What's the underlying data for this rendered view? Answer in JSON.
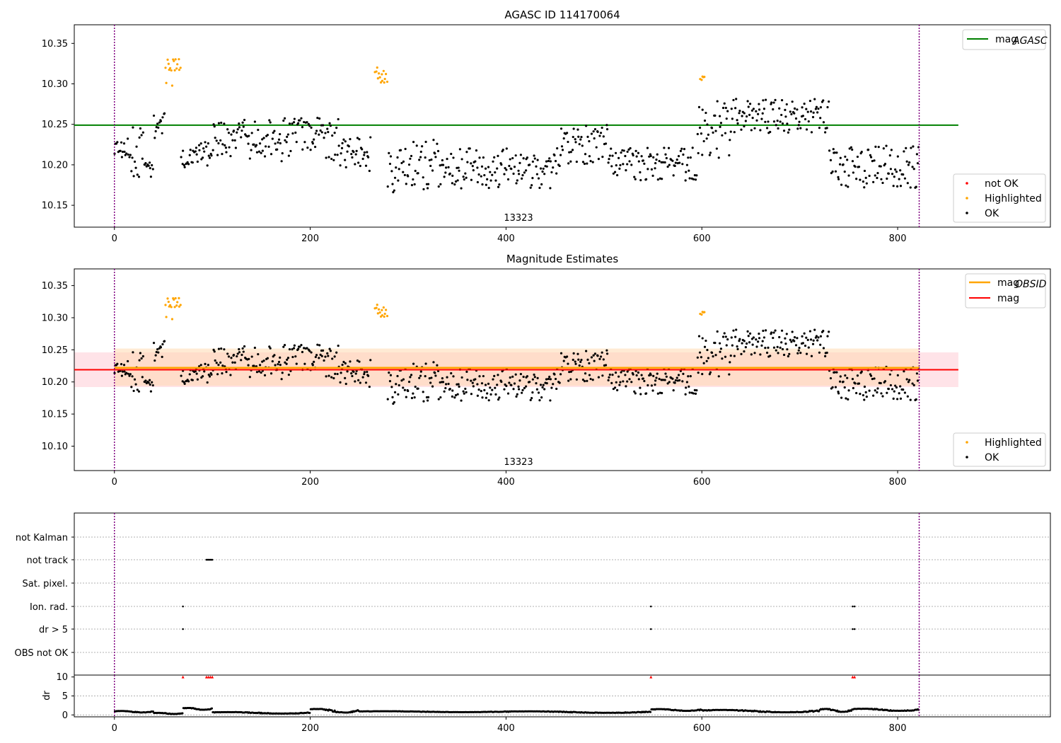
{
  "colors": {
    "ok": "#000000",
    "not_ok": "#ff0000",
    "highlighted": "#ffa500",
    "mag_agasc_line": "#008000",
    "mag_obsid_line": "#ffa500",
    "mag_line": "#ff0000",
    "band_mag": "#ffc0cb",
    "band_obsid": "#ffd8b0",
    "obs_boundary": "#800080",
    "grid": "#b0b0b0"
  },
  "chart_data": [
    {
      "type": "scatter",
      "title": "AGASC ID 114170064",
      "xlabel": "",
      "ylabel": "",
      "xlim": [
        -41,
        956
      ],
      "ylim": [
        10.123,
        10.373
      ],
      "xticks": [
        0,
        200,
        400,
        600,
        800
      ],
      "yticks": [
        10.15,
        10.2,
        10.25,
        10.3,
        10.35
      ],
      "obs_boundaries": [
        0,
        822
      ],
      "obs_label": "13323",
      "obs_label_x": 411,
      "lines": [
        {
          "name": "mag_AGASC",
          "y": 10.249,
          "x_range": [
            -41,
            862
          ],
          "color": "green"
        }
      ],
      "legend_lines": {
        "placement": "top-right",
        "entries": [
          "mag",
          "AGASC"
        ]
      },
      "legend_points": {
        "placement": "bottom-right",
        "entries": [
          "not OK",
          "Highlighted",
          "OK"
        ]
      },
      "series": [
        {
          "name": "not OK",
          "points": []
        },
        {
          "name": "Highlighted",
          "segments": [
            {
              "x": [
                52,
                68
              ],
              "y": [
                10.29,
                10.342
              ]
            },
            {
              "x": [
                266,
                279
              ],
              "y": [
                10.293,
                10.327
              ]
            },
            {
              "x": [
                598,
                603
              ],
              "y": [
                10.303,
                10.311
              ]
            }
          ]
        },
        {
          "name": "OK",
          "segments": [
            {
              "x": [
                0,
                14
              ],
              "y": [
                10.2,
                10.24
              ]
            },
            {
              "x": [
                14,
                30
              ],
              "y": [
                10.17,
                10.26
              ]
            },
            {
              "x": [
                30,
                40
              ],
              "y": [
                10.18,
                10.215
              ]
            },
            {
              "x": [
                40,
                52
              ],
              "y": [
                10.22,
                10.272
              ]
            },
            {
              "x": [
                68,
                100
              ],
              "y": [
                10.19,
                10.235
              ]
            },
            {
              "x": [
                100,
                160
              ],
              "y": [
                10.195,
                10.268
              ]
            },
            {
              "x": [
                160,
                230
              ],
              "y": [
                10.19,
                10.27
              ]
            },
            {
              "x": [
                230,
                262
              ],
              "y": [
                10.18,
                10.25
              ]
            },
            {
              "x": [
                279,
                330
              ],
              "y": [
                10.152,
                10.245
              ]
            },
            {
              "x": [
                330,
                455
              ],
              "y": [
                10.16,
                10.232
              ]
            },
            {
              "x": [
                455,
                505
              ],
              "y": [
                10.19,
                10.26
              ]
            },
            {
              "x": [
                505,
                595
              ],
              "y": [
                10.17,
                10.23
              ]
            },
            {
              "x": [
                595,
                630
              ],
              "y": [
                10.19,
                10.295
              ]
            },
            {
              "x": [
                630,
                730
              ],
              "y": [
                10.23,
                10.292
              ]
            },
            {
              "x": [
                730,
                822
              ],
              "y": [
                10.16,
                10.235
              ]
            }
          ]
        }
      ]
    },
    {
      "type": "scatter",
      "title": "Magnitude Estimates",
      "xlabel": "",
      "ylabel": "",
      "xlim": [
        -41,
        956
      ],
      "ylim": [
        10.062,
        10.376
      ],
      "xticks": [
        0,
        200,
        400,
        600,
        800
      ],
      "yticks": [
        10.1,
        10.15,
        10.2,
        10.25,
        10.3,
        10.35
      ],
      "obs_boundaries": [
        0,
        822
      ],
      "obs_label": "13323",
      "obs_label_x": 411,
      "bands": [
        {
          "name": "mag",
          "y_range": [
            10.192,
            10.246
          ],
          "x_range": [
            -41,
            862
          ],
          "color": "pink"
        },
        {
          "name": "mag_OBSID",
          "y_range": [
            10.194,
            10.252
          ],
          "x_range": [
            0,
            822
          ],
          "color": "peach"
        }
      ],
      "lines": [
        {
          "name": "mag_OBSID",
          "y": 10.222,
          "x_range": [
            0,
            822
          ],
          "color": "orange"
        },
        {
          "name": "mag",
          "y": 10.219,
          "x_range": [
            -41,
            862
          ],
          "color": "red"
        }
      ],
      "legend_lines": {
        "placement": "top-right",
        "entries": [
          "mag",
          "OBSID",
          "mag"
        ]
      },
      "legend_points": {
        "placement": "bottom-right",
        "entries": [
          "Highlighted",
          "OK"
        ]
      },
      "series": [
        {
          "name": "Highlighted",
          "same_as_panel": 0
        },
        {
          "name": "OK",
          "same_as_panel": 0
        }
      ]
    },
    {
      "type": "scatter",
      "title": "",
      "xlabel": "",
      "ylabel": "",
      "xlim": [
        -41,
        956
      ],
      "xticks": [
        0,
        200,
        400,
        600,
        800
      ],
      "obs_boundaries": [
        0,
        822
      ],
      "flag_categories": [
        "not Kalman",
        "not track",
        "Sat. pixel.",
        "Ion. rad.",
        "dr > 5",
        "OBS not OK"
      ],
      "flags": [
        {
          "category": "not Kalman",
          "x": []
        },
        {
          "category": "not track",
          "x": [
            94,
            95,
            96,
            97,
            98,
            99,
            100
          ]
        },
        {
          "category": "Sat. pixel.",
          "x": []
        },
        {
          "category": "Ion. rad.",
          "x": [
            70,
            548,
            754,
            756
          ]
        },
        {
          "category": "dr > 5",
          "x": [
            70,
            548,
            754,
            756
          ]
        },
        {
          "category": "OBS not OK",
          "x": []
        }
      ]
    },
    {
      "type": "scatter",
      "title": "",
      "xlabel": "",
      "ylabel": "dr",
      "xlim": [
        -41,
        956
      ],
      "ylim": [
        -0.5,
        10.5
      ],
      "xticks": [
        0,
        200,
        400,
        600,
        800
      ],
      "yticks": [
        0,
        5,
        10
      ],
      "obs_boundaries": [
        0,
        822
      ],
      "series": [
        {
          "name": "dr",
          "segments": [
            {
              "x": [
                0,
                40
              ],
              "y": [
                0.6,
                1.1
              ]
            },
            {
              "x": [
                40,
                70
              ],
              "y": [
                0.2,
                0.6
              ]
            },
            {
              "x": [
                70,
                100
              ],
              "y": [
                1.3,
                1.9
              ]
            },
            {
              "x": [
                100,
                200
              ],
              "y": [
                0.3,
                0.8
              ]
            },
            {
              "x": [
                200,
                250
              ],
              "y": [
                0.5,
                1.7
              ]
            },
            {
              "x": [
                250,
                400
              ],
              "y": [
                0.7,
                1.0
              ]
            },
            {
              "x": [
                400,
                548
              ],
              "y": [
                0.5,
                1.0
              ]
            },
            {
              "x": [
                548,
                600
              ],
              "y": [
                1.0,
                1.6
              ]
            },
            {
              "x": [
                600,
                720
              ],
              "y": [
                0.6,
                1.4
              ]
            },
            {
              "x": [
                720,
                754
              ],
              "y": [
                0.7,
                1.7
              ]
            },
            {
              "x": [
                754,
                822
              ],
              "y": [
                1.0,
                1.7
              ]
            }
          ]
        },
        {
          "name": "clipped",
          "marker": "triangle",
          "color": "red",
          "y": 10,
          "x": [
            70,
            94,
            96,
            98,
            100,
            548,
            754,
            756
          ]
        }
      ]
    }
  ]
}
